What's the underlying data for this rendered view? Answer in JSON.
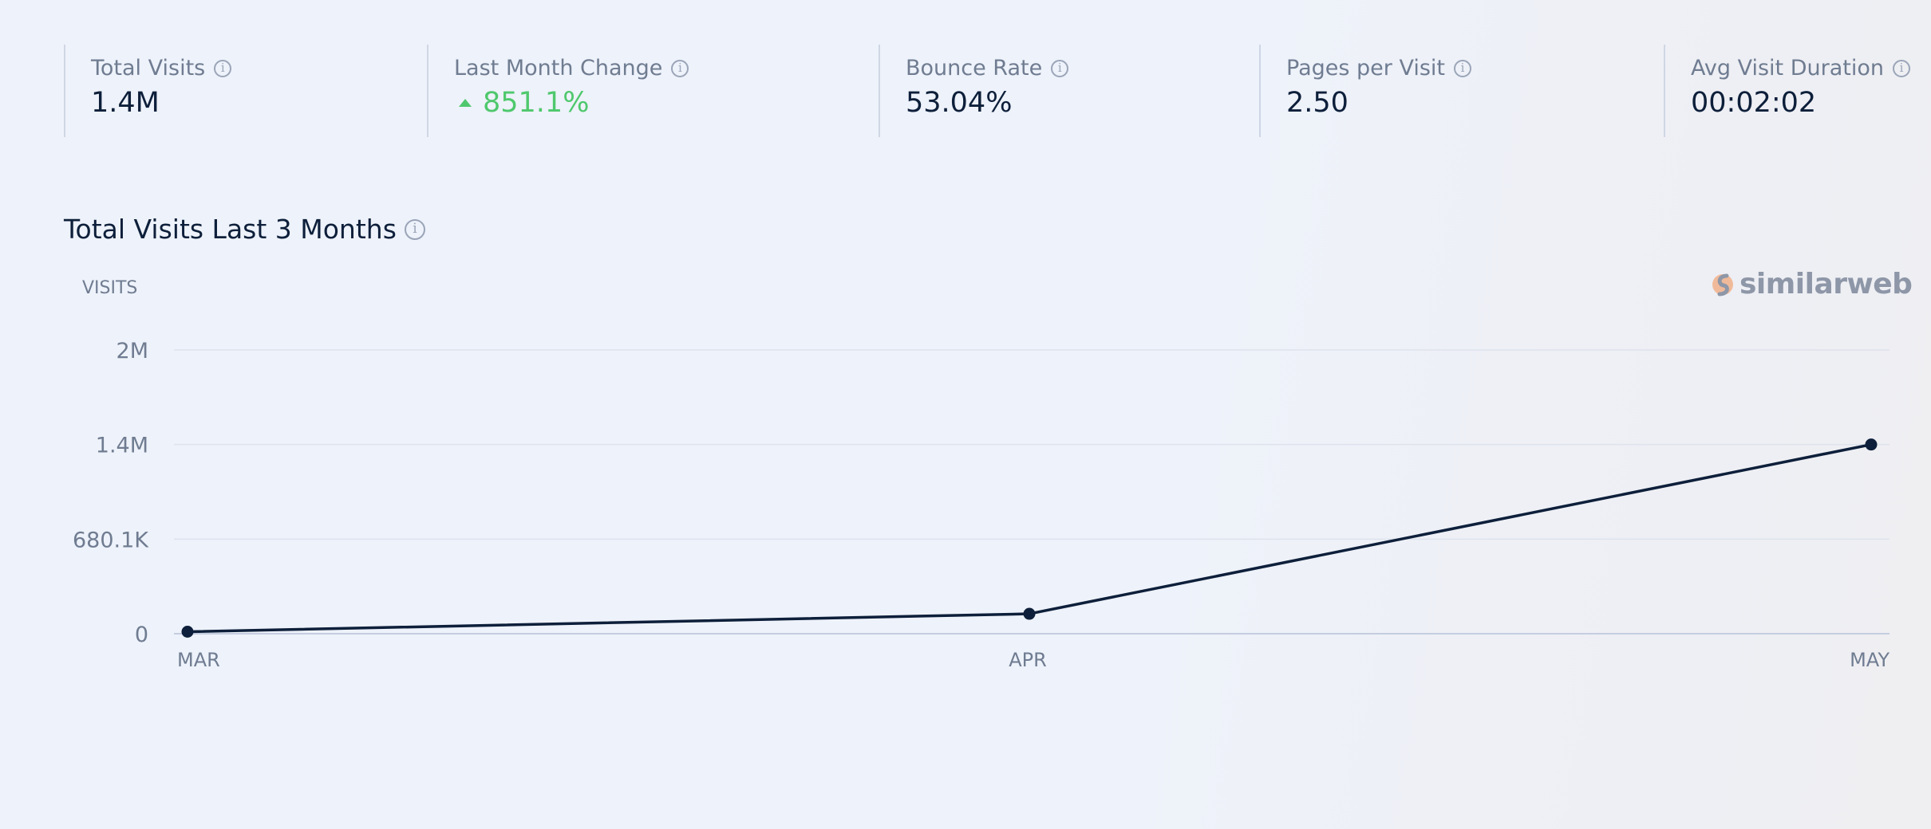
{
  "metrics": [
    {
      "label": "Total Visits",
      "value": "1.4M"
    },
    {
      "label": "Last Month Change",
      "value": "851.1%",
      "trend": "up"
    },
    {
      "label": "Bounce Rate",
      "value": "53.04%"
    },
    {
      "label": "Pages per Visit",
      "value": "2.50"
    },
    {
      "label": "Avg Visit Duration",
      "value": "00:02:02"
    }
  ],
  "info_icon_glyph": "i",
  "chart_title": "Total Visits Last 3 Months",
  "logo_text": "similarweb",
  "colors": {
    "line": "#0d1f3a",
    "positive": "#4fc86d",
    "grid": "#dde2ec",
    "axis": "#c5cde0",
    "logo_mark": "#f0a87c"
  },
  "chart_data": {
    "type": "line",
    "ylabel": "VISITS",
    "categories": [
      "MAR",
      "APR",
      "MAY"
    ],
    "yticks": [
      {
        "label": "0",
        "value": 0
      },
      {
        "label": "680.1K",
        "value": 680100
      },
      {
        "label": "1.4M",
        "value": 1360200
      },
      {
        "label": "2M",
        "value": 2040300
      }
    ],
    "ylim": [
      0,
      2040300
    ],
    "series": [
      {
        "values": [
          14300,
          143000,
          1360200
        ]
      }
    ],
    "grid": true,
    "legend": "none"
  }
}
